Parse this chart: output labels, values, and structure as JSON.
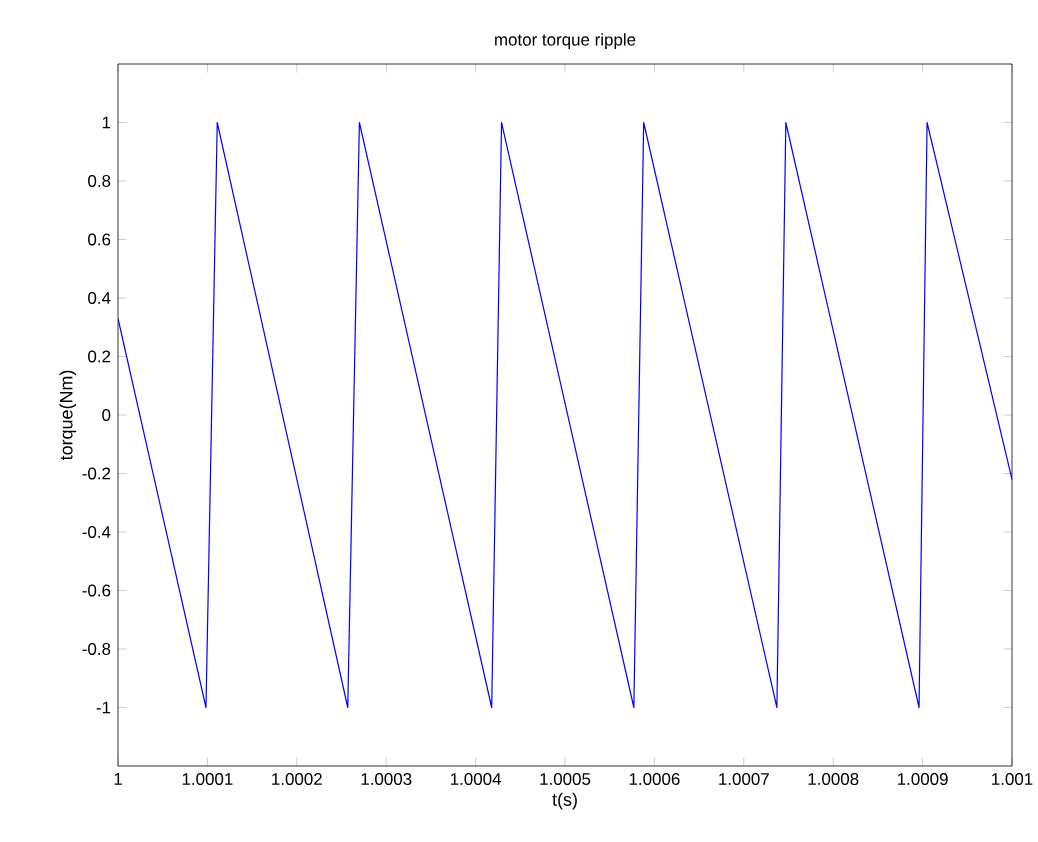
{
  "chart_data": {
    "type": "line",
    "title": "motor torque ripple",
    "xlabel": "t(s)",
    "ylabel": "torque(Nm)",
    "x": [
      1,
      1.0000984,
      1.000111,
      1.000257,
      1.00027,
      1.000418,
      1.000429,
      1.000577,
      1.000588,
      1.000737,
      1.000747,
      1.000896,
      1.000905,
      1.001
    ],
    "series": [
      {
        "color": "#0000ff",
        "values": [
          0.33,
          -1,
          1,
          -1,
          1,
          -1,
          1,
          -1,
          1,
          -1,
          1,
          -1,
          1,
          -0.22
        ]
      }
    ],
    "xlim": [
      1,
      1.001
    ],
    "ylim": [
      -1.2,
      1.2
    ],
    "xticks": [
      1,
      1.0001,
      1.0002,
      1.0003,
      1.0004,
      1.0005,
      1.0006,
      1.0007,
      1.0008,
      1.0009,
      1.001
    ],
    "yticks": [
      -1,
      -0.8,
      -0.6,
      -0.4,
      -0.2,
      0,
      0.2,
      0.4,
      0.6,
      0.8,
      1
    ],
    "grid": false,
    "marker": "none",
    "line_style": "solid"
  }
}
